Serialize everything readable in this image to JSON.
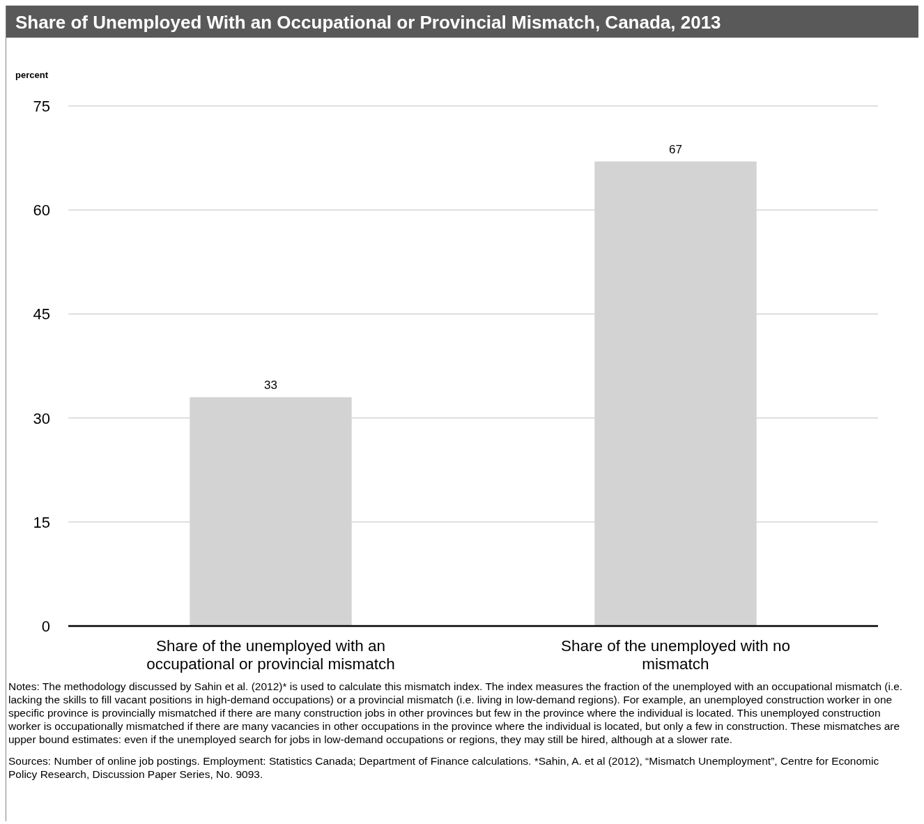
{
  "chart_data": {
    "type": "bar",
    "title": "Share of Unemployed With an Occupational or Provincial Mismatch, Canada, 2013",
    "ylabel": "percent",
    "categories": [
      "Share of the unemployed with an occupational or provincial mismatch",
      "Share of the unemployed with no mismatch"
    ],
    "values": [
      33,
      67
    ],
    "color": "#d3d3d3",
    "ylim": [
      0,
      75
    ],
    "yticks": [
      0,
      15,
      30,
      45,
      60,
      75
    ],
    "grid": "y",
    "data_labels": true,
    "annotations": [
      "Notes: The methodology discussed by Sahin et al. (2012)* is used to calculate this mismatch index. The index measures the fraction of the unemployed with an occupational mismatch (i.e. lacking the skills to fill vacant positions in high-demand occupations) or a provincial mismatch (i.e. living in low-demand regions). For example, an unemployed construction worker in one specific province is provincially mismatched if there are many construction jobs in other provinces but few in the province where the individual is located. This unemployed construction worker is occupationally mismatched if there are many vacancies in other occupations in the province where the individual is located, but only a few in construction. These mismatches are upper bound estimates: even if the unemployed search for jobs in low-demand occupations or regions, they may still be hired, although at a slower rate.",
      "Sources: Number of online job postings. Employment: Statistics Canada; Department of Finance calculations. *Sahin, A. et al (2012), “Mismatch Unemployment”, Centre for Economic Policy Research, Discussion Paper Series, No. 9093."
    ]
  }
}
